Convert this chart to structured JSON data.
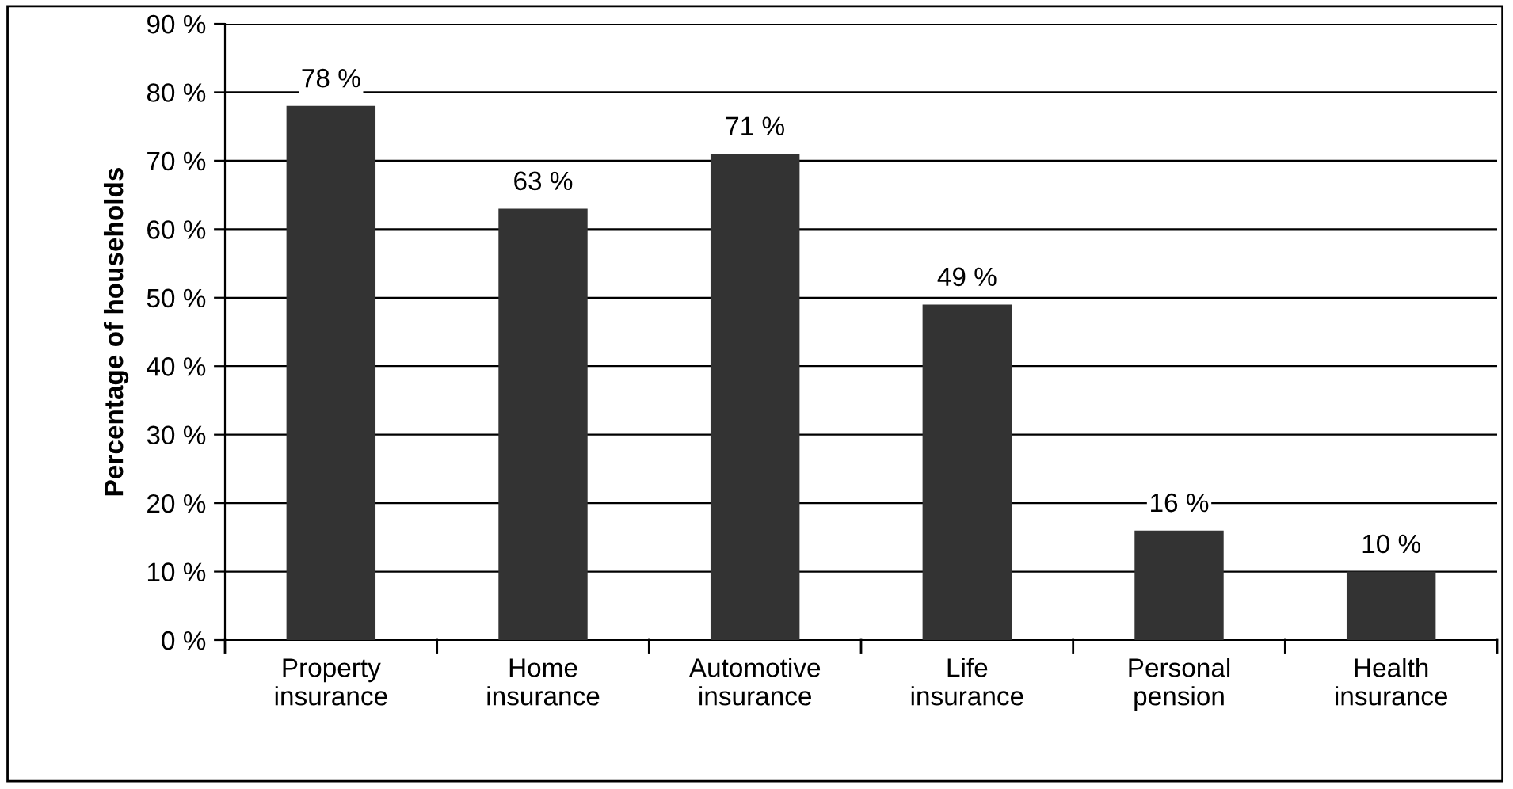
{
  "chart_data": {
    "type": "bar",
    "ylabel": "Percentage of households",
    "categories": [
      "Property\ninsurance",
      "Home\ninsurance",
      "Automotive\ninsurance",
      "Life\ninsurance",
      "Personal\npension",
      "Health\ninsurance"
    ],
    "values": [
      78,
      63,
      71,
      49,
      16,
      10
    ],
    "value_labels": [
      "78 %",
      "63 %",
      "71 %",
      "49 %",
      "16 %",
      "10 %"
    ],
    "color": "#333333",
    "ylim": [
      0,
      90
    ],
    "yticks": [
      {
        "value": 0,
        "label": "0 %"
      },
      {
        "value": 10,
        "label": "10 %"
      },
      {
        "value": 20,
        "label": "20 %"
      },
      {
        "value": 30,
        "label": "30 %"
      },
      {
        "value": 40,
        "label": "40 %"
      },
      {
        "value": 50,
        "label": "50 %"
      },
      {
        "value": 60,
        "label": "60 %"
      },
      {
        "value": 70,
        "label": "70 %"
      },
      {
        "value": 80,
        "label": "80 %"
      },
      {
        "value": 90,
        "label": "90 %"
      }
    ],
    "grid": "y"
  }
}
